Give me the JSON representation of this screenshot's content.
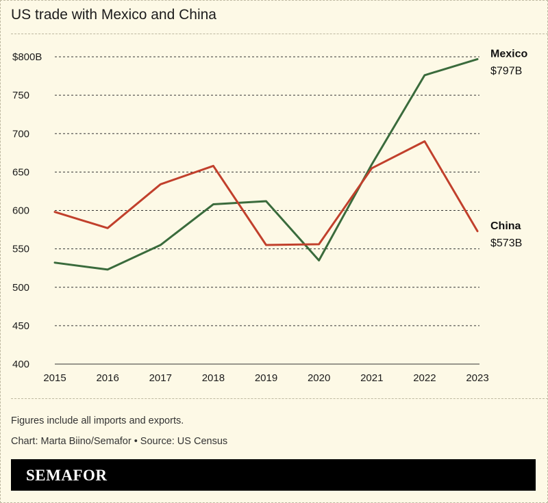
{
  "title": "US trade with Mexico and China",
  "footnote": "Figures include all imports and exports.",
  "credit": "Chart: Marta Biino/Semafor • Source: US Census",
  "brand": "SEMAFOR",
  "colors": {
    "background": "#fdf9e6",
    "mexico": "#3a6b3c",
    "china": "#c1402c",
    "grid": "#333333"
  },
  "chart_data": {
    "type": "line",
    "title": "US trade with Mexico and China",
    "xlabel": "",
    "ylabel": "",
    "x": [
      "2015",
      "2016",
      "2017",
      "2018",
      "2019",
      "2020",
      "2021",
      "2022",
      "2023"
    ],
    "ylim": [
      400,
      800
    ],
    "yticks": [
      400,
      450,
      500,
      550,
      600,
      650,
      700,
      750,
      800
    ],
    "ytick_labels": [
      "400",
      "450",
      "500",
      "550",
      "600",
      "650",
      "700",
      "750",
      "$800B"
    ],
    "grid": "horizontal",
    "series": [
      {
        "name": "Mexico",
        "end_label": "$797B",
        "color": "#3a6b3c",
        "values": [
          532,
          523,
          555,
          608,
          612,
          535,
          660,
          776,
          797
        ]
      },
      {
        "name": "China",
        "end_label": "$573B",
        "color": "#c1402c",
        "values": [
          598,
          577,
          634,
          658,
          555,
          556,
          655,
          690,
          573
        ]
      }
    ]
  }
}
